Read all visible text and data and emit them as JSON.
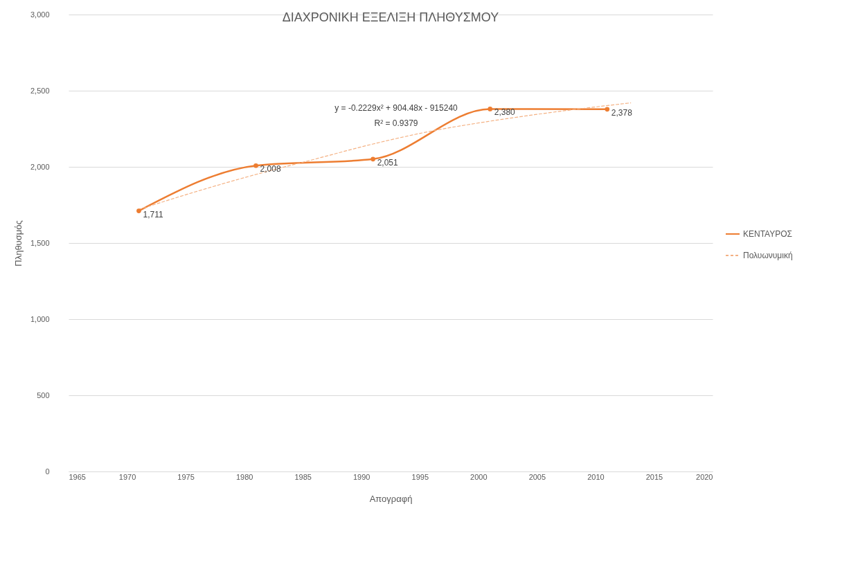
{
  "chart_data": {
    "type": "line",
    "title": "ΔΙΑΧΡΟΝΙΚΗ ΕΞΕΛΙΞΗ ΠΛΗΘΥΣΜΟΥ",
    "xlabel": "Απογραφή",
    "ylabel": "Πληθυσμός",
    "xlim": [
      1965,
      2020
    ],
    "xticks": [
      1965,
      1970,
      1975,
      1980,
      1985,
      1990,
      1995,
      2000,
      2005,
      2010,
      2015,
      2020
    ],
    "ylim": [
      0,
      3000
    ],
    "yticks": [
      0,
      500,
      {
        "value": 1000,
        "label": "1,000"
      },
      {
        "value": 1500,
        "label": "1,500"
      },
      {
        "value": 2000,
        "label": "2,000"
      },
      {
        "value": 2500,
        "label": "2,500"
      },
      {
        "value": 3000,
        "label": "3,000"
      }
    ],
    "grid": "y",
    "legend": "right",
    "series": [
      {
        "name": "ΚΕΝΤΑΥΡΟΣ",
        "color": "#ed7d31",
        "x": [
          1971,
          1981,
          1991,
          2001,
          2011
        ],
        "values": [
          1711,
          2008,
          2051,
          2380,
          2378
        ],
        "value_labels": [
          "1,711",
          "2,008",
          "2,051",
          "2,380",
          "2,378"
        ],
        "marker": "circle",
        "line_style": "solid"
      },
      {
        "name": "Πολυωνυμική",
        "type": "line",
        "color": "#f4b183",
        "x": [
          1971,
          1976,
          1981,
          1986,
          1991,
          1996,
          2001,
          2006,
          2013
        ],
        "values": [
          1720,
          1840,
          1950,
          2050,
          2150,
          2235,
          2300,
          2355,
          2420
        ],
        "marker": "none",
        "line_style": "dashed"
      }
    ],
    "annotations": [
      "y = -0.2229x² + 904.48x - 915240",
      "R² = 0.9379"
    ]
  }
}
